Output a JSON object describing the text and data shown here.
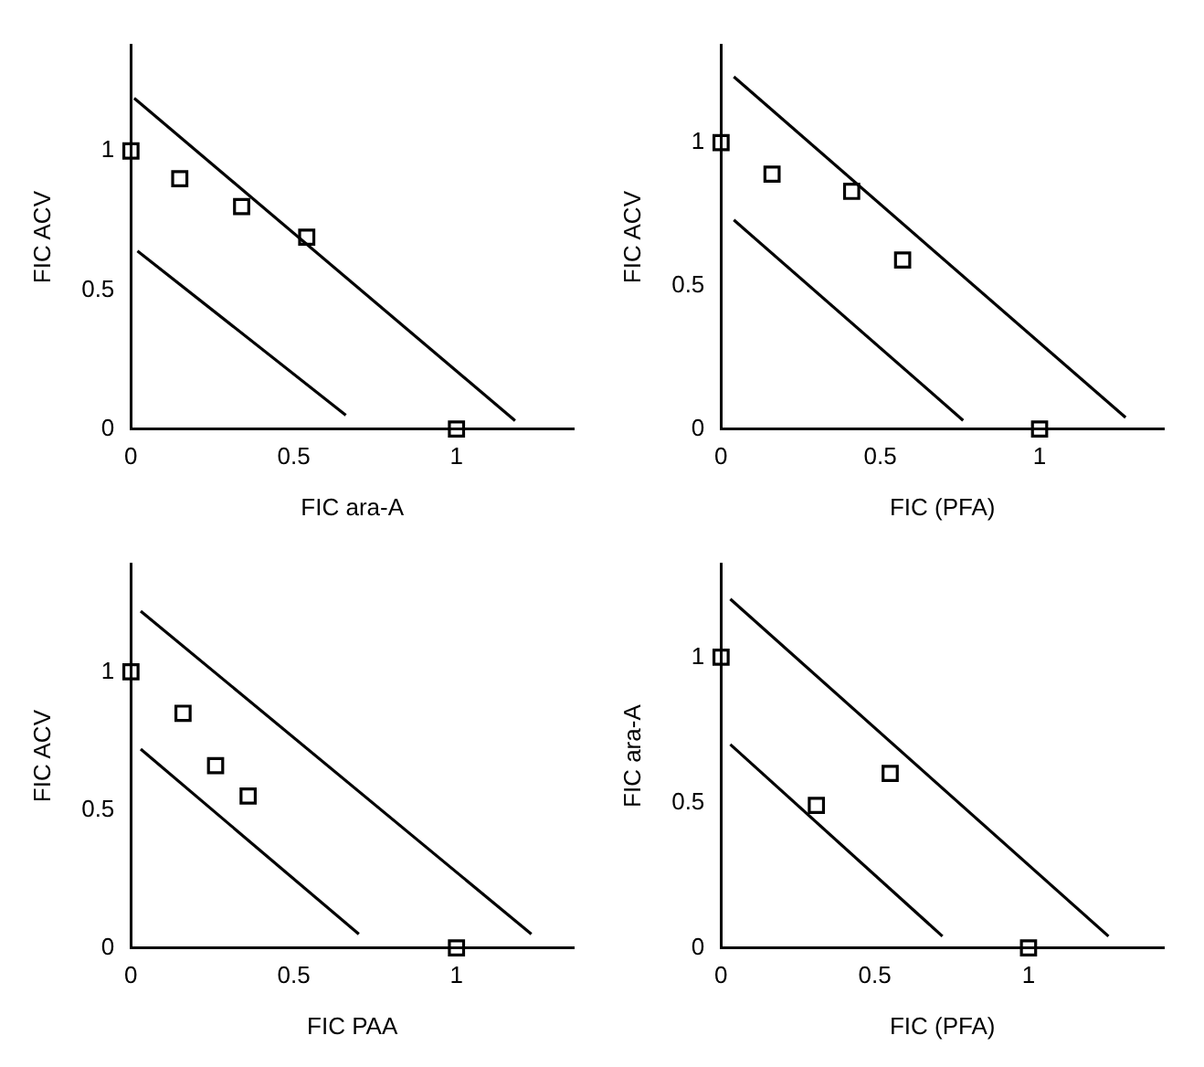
{
  "chart_data": [
    {
      "type": "scatter",
      "xlabel": "FIC ara-A",
      "ylabel": "FIC ACV",
      "xlim": [
        0,
        1.36
      ],
      "ylim": [
        0,
        1.38
      ],
      "xticks": [
        0,
        0.5,
        1
      ],
      "yticks": [
        0,
        0.5,
        1
      ],
      "grid": false,
      "legend": false,
      "series": [
        {
          "type": "scatter",
          "marker": "square",
          "color": "#000000",
          "x": [
            0,
            0.15,
            0.34,
            0.54,
            1
          ],
          "values": [
            1,
            0.9,
            0.8,
            0.69,
            0
          ]
        },
        {
          "type": "line",
          "marker": "none",
          "color": "#000000",
          "line_style": "solid",
          "x": [
            0.01,
            1.18
          ],
          "values": [
            1.19,
            0.03
          ]
        },
        {
          "type": "line",
          "marker": "none",
          "color": "#000000",
          "line_style": "solid",
          "x": [
            0.02,
            0.66
          ],
          "values": [
            0.64,
            0.05
          ]
        }
      ]
    },
    {
      "type": "scatter",
      "xlabel": "FIC (PFA)",
      "ylabel": "FIC ACV",
      "xlim": [
        0,
        1.39
      ],
      "ylim": [
        0,
        1.34
      ],
      "xticks": [
        0,
        0.5,
        1
      ],
      "yticks": [
        0,
        0.5,
        1
      ],
      "grid": false,
      "legend": false,
      "series": [
        {
          "type": "scatter",
          "marker": "square",
          "color": "#000000",
          "x": [
            0,
            0.16,
            0.41,
            0.57,
            1
          ],
          "values": [
            1,
            0.89,
            0.83,
            0.59,
            0
          ]
        },
        {
          "type": "line",
          "marker": "none",
          "color": "#000000",
          "line_style": "solid",
          "x": [
            0.04,
            1.27
          ],
          "values": [
            1.23,
            0.04
          ]
        },
        {
          "type": "line",
          "marker": "none",
          "color": "#000000",
          "line_style": "solid",
          "x": [
            0.04,
            0.76
          ],
          "values": [
            0.73,
            0.03
          ]
        }
      ]
    },
    {
      "type": "scatter",
      "xlabel": "FIC PAA",
      "ylabel": "FIC ACV",
      "xlim": [
        0,
        1.36
      ],
      "ylim": [
        0,
        1.39
      ],
      "xticks": [
        0,
        0.5,
        1
      ],
      "yticks": [
        0,
        0.5,
        1
      ],
      "grid": false,
      "legend": false,
      "series": [
        {
          "type": "scatter",
          "marker": "square",
          "color": "#000000",
          "x": [
            0,
            0.16,
            0.26,
            0.36,
            1
          ],
          "values": [
            1,
            0.85,
            0.66,
            0.55,
            0
          ]
        },
        {
          "type": "line",
          "marker": "none",
          "color": "#000000",
          "line_style": "solid",
          "x": [
            0.03,
            1.23
          ],
          "values": [
            1.22,
            0.05
          ]
        },
        {
          "type": "line",
          "marker": "none",
          "color": "#000000",
          "line_style": "solid",
          "x": [
            0.03,
            0.7
          ],
          "values": [
            0.72,
            0.05
          ]
        }
      ]
    },
    {
      "type": "scatter",
      "xlabel": "FIC (PFA)",
      "ylabel": "FIC ara-A",
      "xlim": [
        0,
        1.44
      ],
      "ylim": [
        0,
        1.32
      ],
      "xticks": [
        0,
        0.5,
        1
      ],
      "yticks": [
        0,
        0.5,
        1
      ],
      "grid": false,
      "legend": false,
      "series": [
        {
          "type": "scatter",
          "marker": "square",
          "color": "#000000",
          "x": [
            0,
            0.31,
            0.55,
            1
          ],
          "values": [
            1,
            0.49,
            0.6,
            0
          ]
        },
        {
          "type": "line",
          "marker": "none",
          "color": "#000000",
          "line_style": "solid",
          "x": [
            0.03,
            1.26
          ],
          "values": [
            1.2,
            0.04
          ]
        },
        {
          "type": "line",
          "marker": "none",
          "color": "#000000",
          "line_style": "solid",
          "x": [
            0.03,
            0.72
          ],
          "values": [
            0.7,
            0.04
          ]
        }
      ]
    }
  ]
}
